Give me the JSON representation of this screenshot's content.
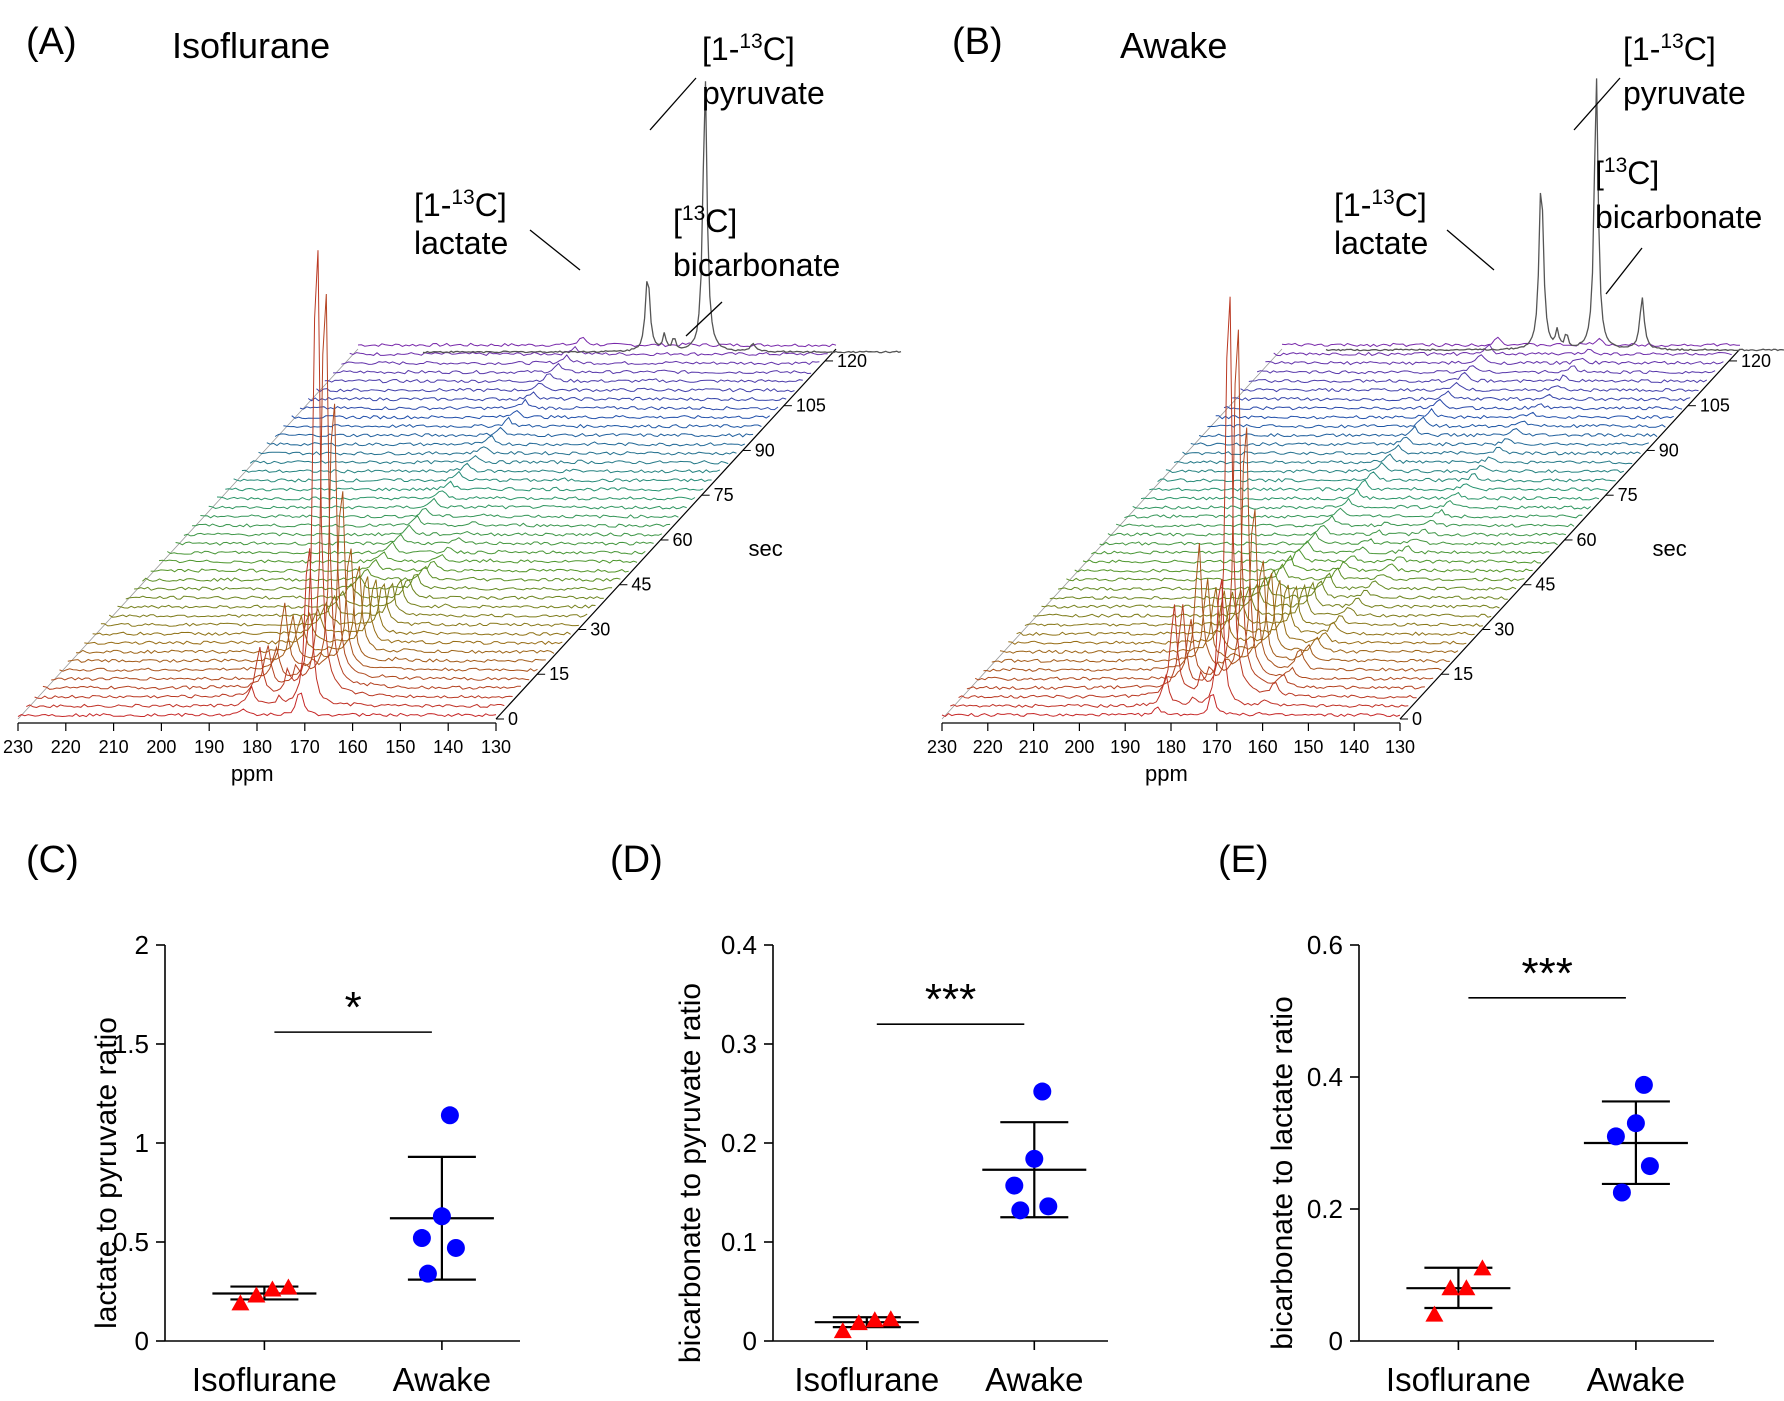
{
  "chart_data": [
    {
      "panel": "(A)",
      "type": "line",
      "subtype": "stacked-spectra-waterfall",
      "title": "Isoflurane",
      "xlabel": "ppm",
      "x_ticks": [
        "230",
        "220",
        "210",
        "200",
        "190",
        "180",
        "170",
        "160",
        "150",
        "140",
        "130"
      ],
      "xlim": [
        230,
        130
      ],
      "zlabel": "sec",
      "z_ticks": [
        "0",
        "15",
        "30",
        "45",
        "60",
        "75",
        "90",
        "105",
        "120"
      ],
      "zlim": [
        0,
        124
      ],
      "n_spectra": 42,
      "peak_ppm": {
        "lactate": 183,
        "pyruvate": 171,
        "bicarbonate": 161
      },
      "summed_spectrum_relative_peaks": {
        "pyruvate": 1.0,
        "lactate": 0.28,
        "bicarbonate": 0.02
      },
      "max_peak_over_time": {
        "times_sec": [
          3,
          6,
          9,
          12,
          15,
          18
        ],
        "pyruvate": [
          0.35,
          1.0,
          0.88,
          0.62,
          0.4,
          0.25
        ]
      },
      "annotations": [
        {
          "top": "[1-",
          "sup": "13",
          "rest": "C]",
          "name": "lactate"
        },
        {
          "top": "[1-",
          "sup": "13",
          "rest": "C]",
          "name": "pyruvate"
        },
        {
          "top": "[",
          "sup": "13",
          "rest": "C]",
          "name": "bicarbonate"
        }
      ]
    },
    {
      "panel": "(B)",
      "type": "line",
      "subtype": "stacked-spectra-waterfall",
      "title": "Awake",
      "xlabel": "ppm",
      "x_ticks": [
        "230",
        "220",
        "210",
        "200",
        "190",
        "180",
        "170",
        "160",
        "150",
        "140",
        "130"
      ],
      "xlim": [
        230,
        130
      ],
      "zlabel": "sec",
      "z_ticks": [
        "0",
        "15",
        "30",
        "45",
        "60",
        "75",
        "90",
        "105",
        "120"
      ],
      "zlim": [
        0,
        124
      ],
      "n_spectra": 42,
      "peak_ppm": {
        "lactate": 183,
        "pyruvate": 171,
        "bicarbonate": 161
      },
      "summed_spectrum_relative_peaks": {
        "pyruvate": 1.0,
        "lactate": 0.62,
        "bicarbonate": 0.18
      },
      "max_peak_over_time": {
        "times_sec": [
          3,
          6,
          9,
          12,
          15,
          18
        ],
        "pyruvate": [
          0.3,
          0.95,
          0.85,
          0.6,
          0.38,
          0.24
        ]
      },
      "annotations": [
        {
          "top": "[1-",
          "sup": "13",
          "rest": "C]",
          "name": "lactate"
        },
        {
          "top": "[1-",
          "sup": "13",
          "rest": "C]",
          "name": "pyruvate"
        },
        {
          "top": "[",
          "sup": "13",
          "rest": "C]",
          "name": "bicarbonate"
        }
      ]
    },
    {
      "panel": "(C)",
      "type": "scatter",
      "ylabel": "lactate to pyruvate ratio",
      "categories": [
        "Isoflurane",
        "Awake"
      ],
      "ylim": [
        0,
        2
      ],
      "yticks": [
        "0",
        "0.5",
        "1",
        "1.5",
        "2"
      ],
      "series": [
        {
          "name": "Isoflurane",
          "marker": "triangle",
          "color": "#ff0000",
          "values": [
            0.19,
            0.23,
            0.26,
            0.27
          ],
          "mean": 0.24,
          "sd": [
            0.21,
            0.275
          ]
        },
        {
          "name": "Awake",
          "marker": "circle",
          "color": "#0000ff",
          "values": [
            0.34,
            0.47,
            0.52,
            0.63,
            1.14
          ],
          "mean": 0.62,
          "sd": [
            0.31,
            0.93
          ]
        }
      ],
      "significance": "*"
    },
    {
      "panel": "(D)",
      "type": "scatter",
      "ylabel": "bicarbonate to pyruvate ratio",
      "categories": [
        "Isoflurane",
        "Awake"
      ],
      "ylim": [
        0,
        0.4
      ],
      "yticks": [
        "0",
        "0.1",
        "0.2",
        "0.3",
        "0.4"
      ],
      "series": [
        {
          "name": "Isoflurane",
          "marker": "triangle",
          "color": "#ff0000",
          "values": [
            0.01,
            0.018,
            0.021,
            0.022
          ],
          "mean": 0.019,
          "sd": [
            0.014,
            0.024
          ]
        },
        {
          "name": "Awake",
          "marker": "circle",
          "color": "#0000ff",
          "values": [
            0.132,
            0.136,
            0.157,
            0.184,
            0.252
          ],
          "mean": 0.173,
          "sd": [
            0.125,
            0.221
          ]
        }
      ],
      "significance": "***"
    },
    {
      "panel": "(E)",
      "type": "scatter",
      "ylabel": "bicarbonate to lactate ratio",
      "categories": [
        "Isoflurane",
        "Awake"
      ],
      "ylim": [
        0,
        0.6
      ],
      "yticks": [
        "0",
        "0.2",
        "0.4",
        "0.6"
      ],
      "series": [
        {
          "name": "Isoflurane",
          "marker": "triangle",
          "color": "#ff0000",
          "values": [
            0.04,
            0.08,
            0.08,
            0.11
          ],
          "mean": 0.08,
          "sd": [
            0.05,
            0.111
          ]
        },
        {
          "name": "Awake",
          "marker": "circle",
          "color": "#0000ff",
          "values": [
            0.225,
            0.265,
            0.31,
            0.33,
            0.388
          ],
          "mean": 0.3,
          "sd": [
            0.238,
            0.363
          ]
        }
      ],
      "significance": "***"
    }
  ]
}
